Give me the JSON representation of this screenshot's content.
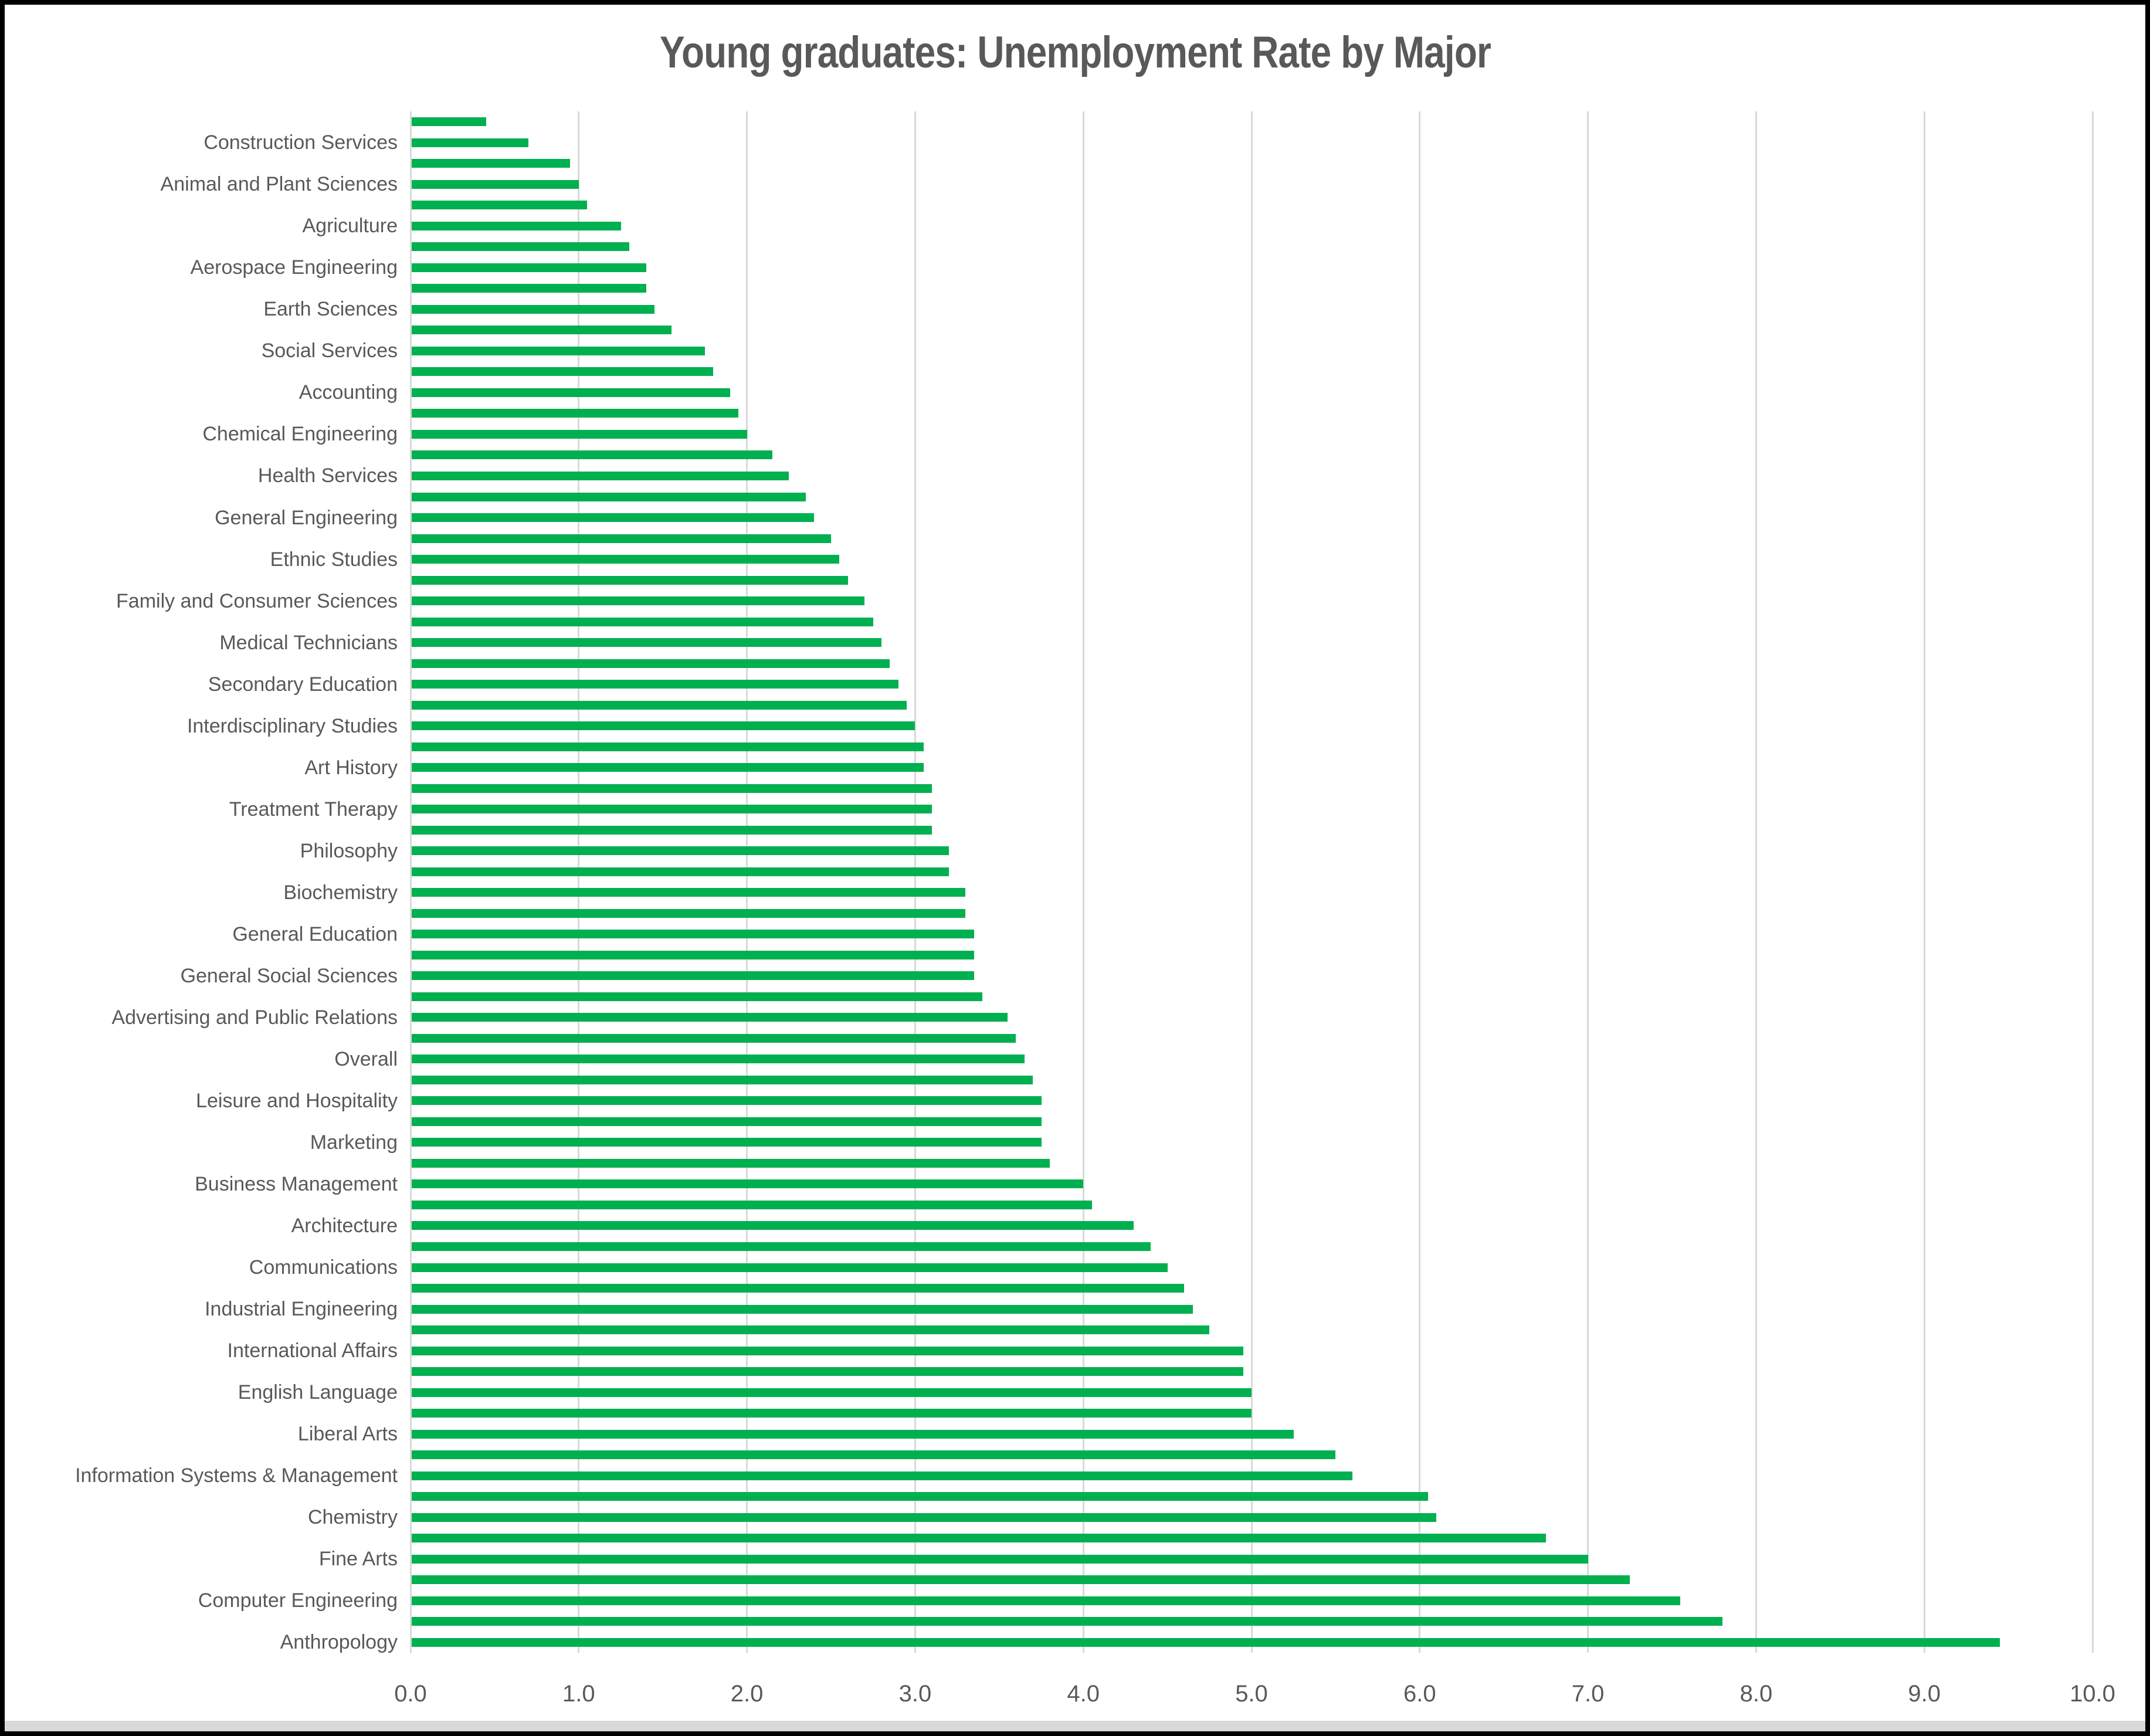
{
  "chart_data": {
    "type": "bar",
    "orientation": "horizontal",
    "title": "Young graduates: Unemployment Rate by Major",
    "xlabel": "",
    "ylabel": "",
    "xlim": [
      0,
      10
    ],
    "x_tick_labels": [
      "0.0",
      "1.0",
      "2.0",
      "3.0",
      "4.0",
      "5.0",
      "6.0",
      "7.0",
      "8.0",
      "9.0",
      "10.0"
    ],
    "grid": true,
    "legend": false,
    "bar_color": "#00B050",
    "grid_color": "#D9D9D9",
    "text_color": "#595959",
    "label_note": "axis labels shown on every second bar only",
    "bars": [
      {
        "label": "",
        "value": 0.45
      },
      {
        "label": "Construction Services",
        "value": 0.7
      },
      {
        "label": "",
        "value": 0.95
      },
      {
        "label": "Animal and Plant Sciences",
        "value": 1.0
      },
      {
        "label": "",
        "value": 1.05
      },
      {
        "label": "Agriculture",
        "value": 1.25
      },
      {
        "label": "",
        "value": 1.3
      },
      {
        "label": "Aerospace Engineering",
        "value": 1.4
      },
      {
        "label": "",
        "value": 1.4
      },
      {
        "label": "Earth Sciences",
        "value": 1.45
      },
      {
        "label": "",
        "value": 1.55
      },
      {
        "label": "Social Services",
        "value": 1.75
      },
      {
        "label": "",
        "value": 1.8
      },
      {
        "label": "Accounting",
        "value": 1.9
      },
      {
        "label": "",
        "value": 1.95
      },
      {
        "label": "Chemical Engineering",
        "value": 2.0
      },
      {
        "label": "",
        "value": 2.15
      },
      {
        "label": "Health Services",
        "value": 2.25
      },
      {
        "label": "",
        "value": 2.35
      },
      {
        "label": "General Engineering",
        "value": 2.4
      },
      {
        "label": "",
        "value": 2.5
      },
      {
        "label": "Ethnic Studies",
        "value": 2.55
      },
      {
        "label": "",
        "value": 2.6
      },
      {
        "label": "Family and Consumer Sciences",
        "value": 2.7
      },
      {
        "label": "",
        "value": 2.75
      },
      {
        "label": "Medical Technicians",
        "value": 2.8
      },
      {
        "label": "",
        "value": 2.85
      },
      {
        "label": "Secondary Education",
        "value": 2.9
      },
      {
        "label": "",
        "value": 2.95
      },
      {
        "label": "Interdisciplinary Studies",
        "value": 3.0
      },
      {
        "label": "",
        "value": 3.05
      },
      {
        "label": "Art History",
        "value": 3.05
      },
      {
        "label": "",
        "value": 3.1
      },
      {
        "label": "Treatment Therapy",
        "value": 3.1
      },
      {
        "label": "",
        "value": 3.1
      },
      {
        "label": "Philosophy",
        "value": 3.2
      },
      {
        "label": "",
        "value": 3.2
      },
      {
        "label": "Biochemistry",
        "value": 3.3
      },
      {
        "label": "",
        "value": 3.3
      },
      {
        "label": "General Education",
        "value": 3.35
      },
      {
        "label": "",
        "value": 3.35
      },
      {
        "label": "General Social Sciences",
        "value": 3.35
      },
      {
        "label": "",
        "value": 3.4
      },
      {
        "label": "Advertising and Public Relations",
        "value": 3.55
      },
      {
        "label": "",
        "value": 3.6
      },
      {
        "label": "Overall",
        "value": 3.65
      },
      {
        "label": "",
        "value": 3.7
      },
      {
        "label": "Leisure and Hospitality",
        "value": 3.75
      },
      {
        "label": "",
        "value": 3.75
      },
      {
        "label": "Marketing",
        "value": 3.75
      },
      {
        "label": "",
        "value": 3.8
      },
      {
        "label": "Business Management",
        "value": 4.0
      },
      {
        "label": "",
        "value": 4.05
      },
      {
        "label": "Architecture",
        "value": 4.3
      },
      {
        "label": "",
        "value": 4.4
      },
      {
        "label": "Communications",
        "value": 4.5
      },
      {
        "label": "",
        "value": 4.6
      },
      {
        "label": "Industrial Engineering",
        "value": 4.65
      },
      {
        "label": "",
        "value": 4.75
      },
      {
        "label": "International Affairs",
        "value": 4.95
      },
      {
        "label": "",
        "value": 4.95
      },
      {
        "label": "English Language",
        "value": 5.0
      },
      {
        "label": "",
        "value": 5.0
      },
      {
        "label": "Liberal Arts",
        "value": 5.25
      },
      {
        "label": "",
        "value": 5.5
      },
      {
        "label": "Information Systems & Management",
        "value": 5.6
      },
      {
        "label": "",
        "value": 6.05
      },
      {
        "label": "Chemistry",
        "value": 6.1
      },
      {
        "label": "",
        "value": 6.75
      },
      {
        "label": "Fine Arts",
        "value": 7.0
      },
      {
        "label": "",
        "value": 7.25
      },
      {
        "label": "Computer Engineering",
        "value": 7.55
      },
      {
        "label": "",
        "value": 7.8
      },
      {
        "label": "Anthropology",
        "value": 9.45
      }
    ]
  }
}
